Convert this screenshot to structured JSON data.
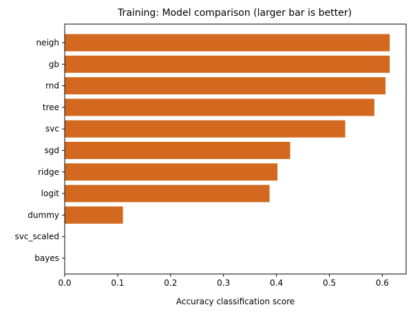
{
  "chart_data": {
    "type": "bar",
    "orientation": "horizontal",
    "title": "Training: Model comparison (larger bar is better)",
    "xlabel": "Accuracy classification score",
    "ylabel": "",
    "categories": [
      "neigh",
      "gb",
      "rnd",
      "tree",
      "svc",
      "sgd",
      "ridge",
      "logit",
      "dummy",
      "svc_scaled",
      "bayes"
    ],
    "values": [
      0.614,
      0.614,
      0.606,
      0.585,
      0.53,
      0.426,
      0.402,
      0.387,
      0.11,
      0.0,
      0.0
    ],
    "xlim": [
      0,
      0.645
    ],
    "xticks": [
      0.0,
      0.1,
      0.2,
      0.3,
      0.4,
      0.5,
      0.6
    ],
    "xtick_labels": [
      "0.0",
      "0.1",
      "0.2",
      "0.3",
      "0.4",
      "0.5",
      "0.6"
    ],
    "bar_color": "#d2691e",
    "grid": false,
    "legend": "none"
  }
}
